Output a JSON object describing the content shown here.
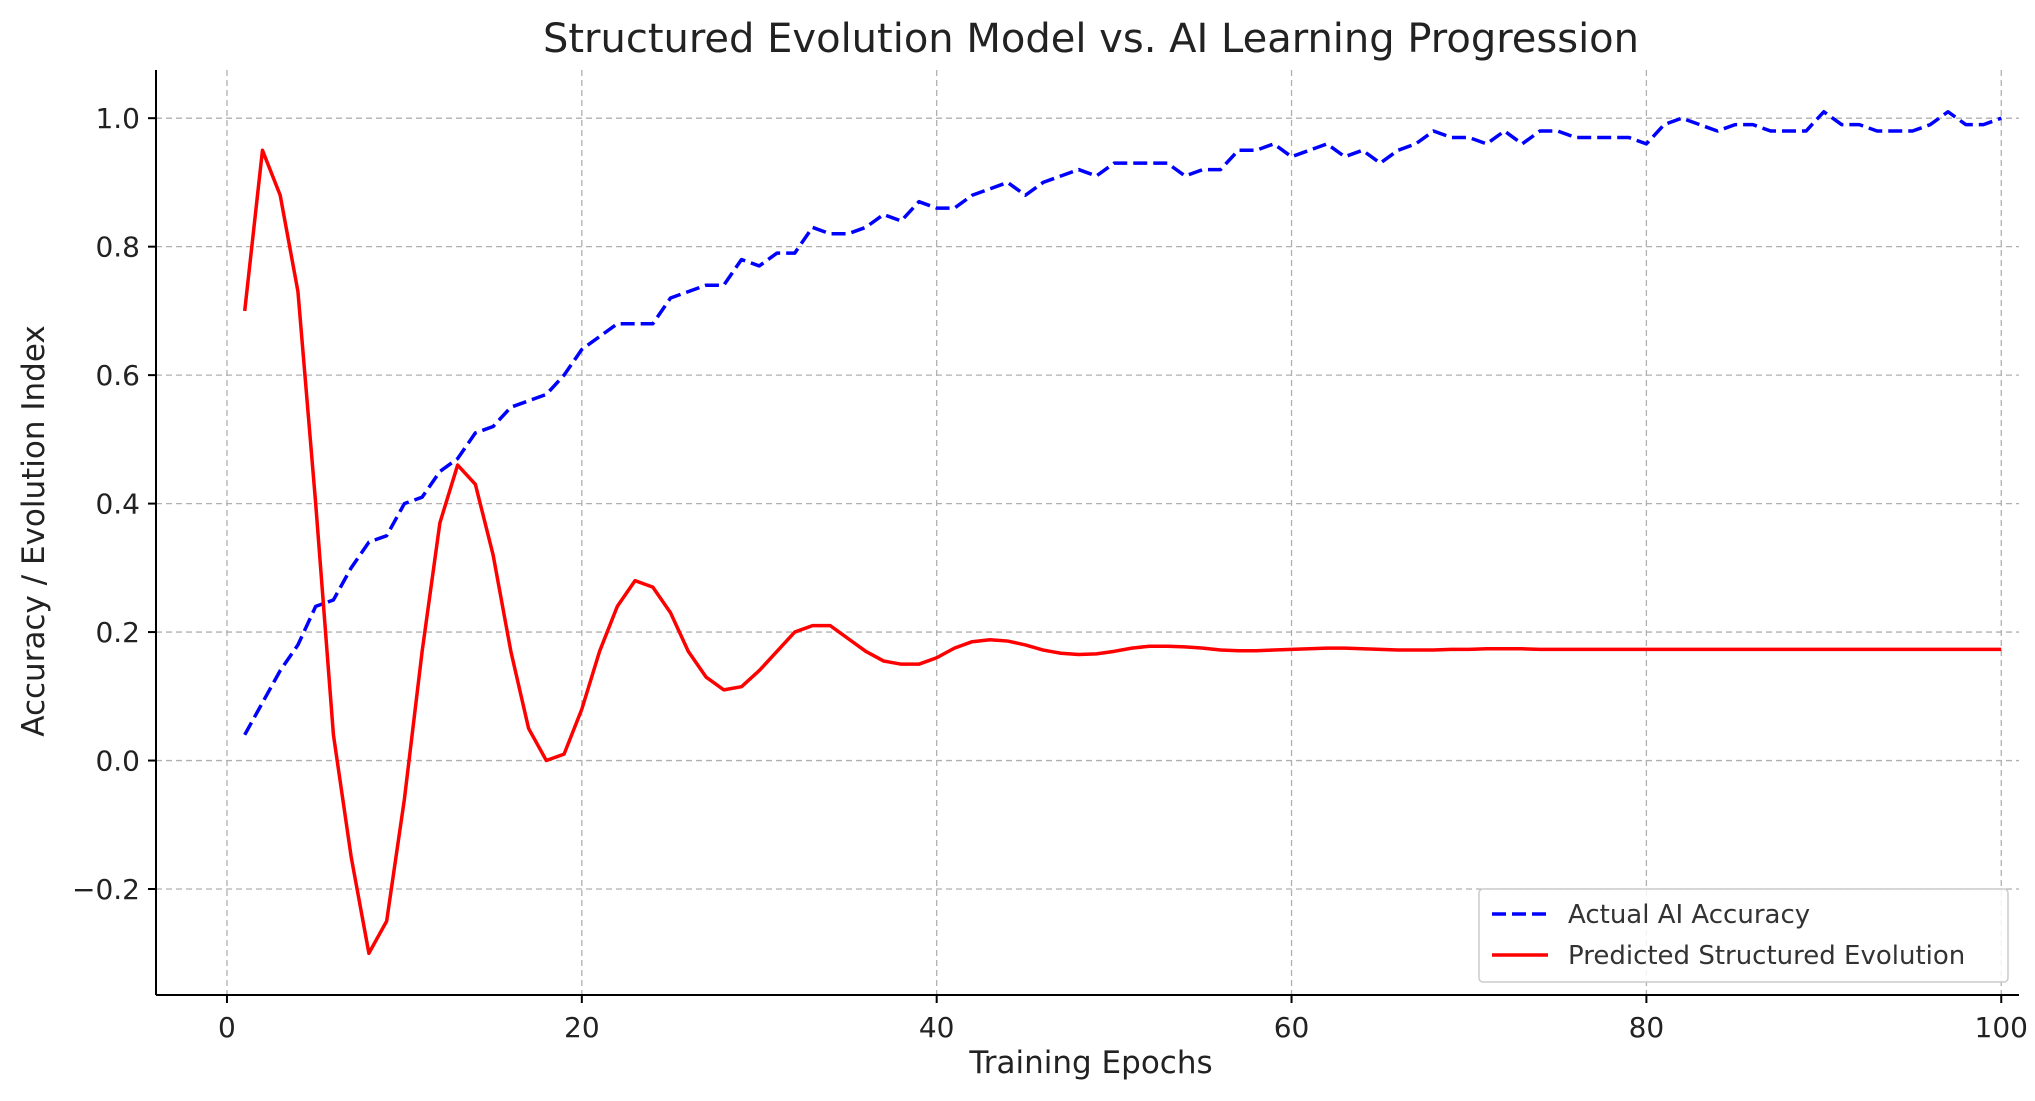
{
  "chart_data": {
    "type": "line",
    "title": "Structured Evolution Model vs. AI Learning Progression",
    "xlabel": "Training Epochs",
    "ylabel": "Accuracy / Evolution Index",
    "xlim": [
      -4,
      101
    ],
    "ylim": [
      -0.365,
      1.075
    ],
    "xticks": [
      0,
      20,
      40,
      60,
      80,
      100
    ],
    "xtick_labels": [
      "0",
      "20",
      "40",
      "60",
      "80",
      "100"
    ],
    "yticks": [
      -0.2,
      0.0,
      0.2,
      0.4,
      0.6,
      0.8,
      1.0
    ],
    "ytick_labels": [
      "−0.2",
      "0.0",
      "0.2",
      "0.4",
      "0.6",
      "0.8",
      "1.0"
    ],
    "grid": true,
    "legend_position": "lower-right",
    "x": [
      1,
      2,
      3,
      4,
      5,
      6,
      7,
      8,
      9,
      10,
      11,
      12,
      13,
      14,
      15,
      16,
      17,
      18,
      19,
      20,
      21,
      22,
      23,
      24,
      25,
      26,
      27,
      28,
      29,
      30,
      31,
      32,
      33,
      34,
      35,
      36,
      37,
      38,
      39,
      40,
      41,
      42,
      43,
      44,
      45,
      46,
      47,
      48,
      49,
      50,
      51,
      52,
      53,
      54,
      55,
      56,
      57,
      58,
      59,
      60,
      61,
      62,
      63,
      64,
      65,
      66,
      67,
      68,
      69,
      70,
      71,
      72,
      73,
      74,
      75,
      76,
      77,
      78,
      79,
      80,
      81,
      82,
      83,
      84,
      85,
      86,
      87,
      88,
      89,
      90,
      91,
      92,
      93,
      94,
      95,
      96,
      97,
      98,
      99,
      100
    ],
    "series": [
      {
        "name": "Actual AI Accuracy",
        "color": "#0000ff",
        "style": "dashed",
        "values": [
          0.04,
          0.09,
          0.14,
          0.18,
          0.24,
          0.25,
          0.3,
          0.34,
          0.35,
          0.4,
          0.41,
          0.45,
          0.47,
          0.51,
          0.52,
          0.55,
          0.56,
          0.57,
          0.6,
          0.64,
          0.66,
          0.68,
          0.68,
          0.68,
          0.72,
          0.73,
          0.74,
          0.74,
          0.78,
          0.77,
          0.79,
          0.79,
          0.83,
          0.82,
          0.82,
          0.83,
          0.85,
          0.84,
          0.87,
          0.86,
          0.86,
          0.88,
          0.89,
          0.9,
          0.88,
          0.9,
          0.91,
          0.92,
          0.91,
          0.93,
          0.93,
          0.93,
          0.93,
          0.91,
          0.92,
          0.92,
          0.95,
          0.95,
          0.96,
          0.94,
          0.95,
          0.96,
          0.94,
          0.95,
          0.93,
          0.95,
          0.96,
          0.98,
          0.97,
          0.97,
          0.96,
          0.98,
          0.96,
          0.98,
          0.98,
          0.97,
          0.97,
          0.97,
          0.97,
          0.96,
          0.99,
          1.0,
          0.99,
          0.98,
          0.99,
          0.99,
          0.98,
          0.98,
          0.98,
          1.01,
          0.99,
          0.99,
          0.98,
          0.98,
          0.98,
          0.99,
          1.01,
          0.99,
          0.99,
          1.0
        ]
      },
      {
        "name": "Predicted Structured Evolution",
        "color": "#ff0000",
        "style": "solid",
        "values": [
          0.7,
          0.95,
          0.88,
          0.73,
          0.4,
          0.04,
          -0.15,
          -0.3,
          -0.25,
          -0.06,
          0.17,
          0.37,
          0.46,
          0.43,
          0.32,
          0.17,
          0.05,
          0.0,
          0.01,
          0.08,
          0.17,
          0.24,
          0.28,
          0.27,
          0.23,
          0.17,
          0.13,
          0.11,
          0.115,
          0.14,
          0.17,
          0.2,
          0.21,
          0.21,
          0.19,
          0.17,
          0.155,
          0.15,
          0.15,
          0.16,
          0.175,
          0.185,
          0.188,
          0.186,
          0.18,
          0.172,
          0.167,
          0.165,
          0.166,
          0.17,
          0.175,
          0.178,
          0.178,
          0.177,
          0.175,
          0.172,
          0.171,
          0.171,
          0.172,
          0.173,
          0.174,
          0.175,
          0.175,
          0.174,
          0.173,
          0.172,
          0.172,
          0.172,
          0.173,
          0.173,
          0.174,
          0.174,
          0.174,
          0.173,
          0.173,
          0.173,
          0.173,
          0.173,
          0.173,
          0.173,
          0.173,
          0.173,
          0.173,
          0.173,
          0.173,
          0.173,
          0.173,
          0.173,
          0.173,
          0.173,
          0.173,
          0.173,
          0.173,
          0.173,
          0.173,
          0.173,
          0.173,
          0.173,
          0.173,
          0.173
        ]
      }
    ]
  }
}
